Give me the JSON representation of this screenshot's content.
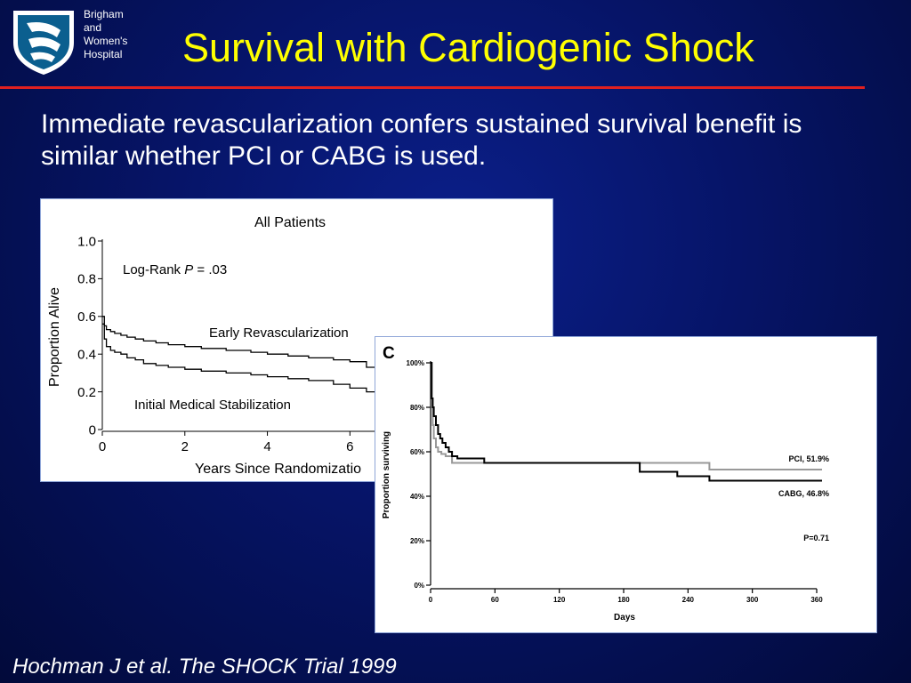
{
  "header": {
    "logo_lines": [
      "Brigham",
      "and",
      "Women's",
      "Hospital"
    ],
    "title": "Survival with Cardiogenic Shock"
  },
  "body": {
    "text": "Immediate revascularization confers sustained survival benefit is similar whether PCI or CABG is used."
  },
  "footer": {
    "citation": "Hochman J et al.  The SHOCK Trial 1999"
  },
  "colors": {
    "background": "#061467",
    "title": "#ffff00",
    "rule": "#e02020",
    "text": "#ffffff",
    "logo_shield": "#0b5f8f"
  },
  "chart_data": [
    {
      "type": "line",
      "title": "All Patients",
      "xlabel": "Years Since Randomizatio",
      "ylabel": "Proportion Alive",
      "xticks": [
        "0",
        "2",
        "4",
        "6"
      ],
      "yticks": [
        "0",
        "0.2",
        "0.4",
        "0.6",
        "0.8",
        "1.0"
      ],
      "xlim": [
        0,
        7.2
      ],
      "ylim": [
        0,
        1
      ],
      "grid": false,
      "annotation_label": "Log-Rank",
      "annotation_p_symbol": "P",
      "annotation_p_value": "= .03",
      "series": [
        {
          "name": "Early Revascularization",
          "color": "#000000",
          "x": [
            0,
            0.05,
            0.1,
            0.2,
            0.3,
            0.45,
            0.6,
            0.8,
            1.0,
            1.3,
            1.6,
            2.0,
            2.4,
            3.0,
            3.6,
            4.0,
            4.5,
            5.0,
            5.6,
            6.0,
            6.4,
            6.8,
            7.2
          ],
          "y": [
            0.6,
            0.55,
            0.53,
            0.52,
            0.51,
            0.5,
            0.49,
            0.48,
            0.47,
            0.46,
            0.45,
            0.44,
            0.43,
            0.42,
            0.41,
            0.4,
            0.39,
            0.38,
            0.37,
            0.36,
            0.33,
            0.3,
            0.29
          ]
        },
        {
          "name": "Initial Medical Stabilization",
          "color": "#000000",
          "x": [
            0,
            0.05,
            0.1,
            0.2,
            0.3,
            0.45,
            0.6,
            0.8,
            1.0,
            1.3,
            1.6,
            2.0,
            2.4,
            3.0,
            3.6,
            4.0,
            4.5,
            5.0,
            5.6,
            6.0,
            6.4,
            6.8,
            7.2
          ],
          "y": [
            0.56,
            0.48,
            0.44,
            0.42,
            0.41,
            0.4,
            0.38,
            0.37,
            0.35,
            0.34,
            0.33,
            0.32,
            0.31,
            0.3,
            0.29,
            0.28,
            0.27,
            0.26,
            0.24,
            0.22,
            0.2,
            0.18,
            0.18
          ]
        }
      ]
    },
    {
      "type": "line",
      "panel_label": "C",
      "xlabel": "Days",
      "ylabel": "Proportion surviving",
      "xticks": [
        "0",
        "60",
        "120",
        "180",
        "240",
        "300",
        "360"
      ],
      "yticks": [
        "0%",
        "20%",
        "40%",
        "60%",
        "80%",
        "100%"
      ],
      "xlim": [
        0,
        360
      ],
      "ylim": [
        0,
        100
      ],
      "grid": false,
      "annotation": "P=0.71",
      "series": [
        {
          "name": "PCI",
          "label": "PCI, 51.9%",
          "color": "#999999",
          "x": [
            0,
            1,
            2,
            3,
            5,
            7,
            10,
            14,
            20,
            30,
            260,
            365
          ],
          "y": [
            100,
            80,
            72,
            66,
            62,
            60,
            59,
            58,
            55,
            55,
            52,
            52
          ]
        },
        {
          "name": "CABG",
          "label": "CABG, 46.8%",
          "color": "#000000",
          "x": [
            0,
            1,
            2,
            3,
            5,
            7,
            9,
            11,
            14,
            17,
            20,
            25,
            50,
            192,
            195,
            230,
            260,
            365
          ],
          "y": [
            100,
            84,
            80,
            76,
            72,
            68,
            66,
            64,
            62,
            60,
            58,
            57,
            55,
            55,
            51,
            49,
            47,
            47
          ]
        }
      ]
    }
  ]
}
